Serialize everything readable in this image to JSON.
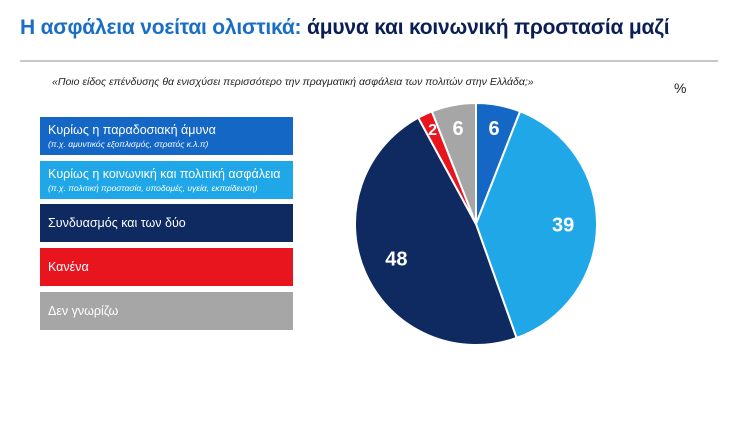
{
  "header": {
    "title_part1": "Η ασφάλεια νοείται ολιστικά:",
    "title_part2": "άμυνα και κοινωνική προστασία μαζί",
    "question": "«Ποιο είδος επένδυσης θα ενισχύσει περισσότερο την πραγματική ασφάλεια των πολιτών στην Ελλάδα;»",
    "unit": "%"
  },
  "colors": {
    "title_accent": "#1a6fc4",
    "title_dark": "#0b1f55"
  },
  "legend": [
    {
      "label": "Κυρίως η παραδοσιακή άμυνα",
      "sublabel": "(π.χ. αμυντικός εξοπλισμός, στρατός κ.λ.π)",
      "color": "#1467c5"
    },
    {
      "label": "Κυρίως η κοινωνική και πολιτική ασφάλεια",
      "sublabel": "(π.χ. πολιτική προστασία, υποδομές, υγεία, εκπαίδευση)",
      "color": "#1fa7e8"
    },
    {
      "label": "Συνδυασμός και των δύο",
      "sublabel": "",
      "color": "#0e2a60"
    },
    {
      "label": "Κανένα",
      "sublabel": "",
      "color": "#e8151f"
    },
    {
      "label": "Δεν γνωρίζω",
      "sublabel": "",
      "color": "#a6a6a6"
    }
  ],
  "chart_data": {
    "type": "pie",
    "title": "Η ασφάλεια νοείται ολιστικά: άμυνα και κοινωνική προστασία μαζί",
    "unit": "%",
    "slices": [
      {
        "label": "Κυρίως η παραδοσιακή άμυνα",
        "value": 6,
        "display": "6",
        "color": "#1467c5"
      },
      {
        "label": "Κυρίως η κοινωνική και πολιτική ασφάλεια",
        "value": 39,
        "display": "39",
        "color": "#1fa7e8"
      },
      {
        "label": "Συνδυασμός και των δύο",
        "value": 48,
        "display": "48",
        "color": "#0e2a60"
      },
      {
        "label": "Κανένα",
        "value": 2,
        "display": "2",
        "color": "#e8151f"
      },
      {
        "label": "Δεν γνωρίζω",
        "value": 6,
        "display": "6",
        "color": "#a6a6a6"
      }
    ],
    "start": "12 o'clock",
    "direction": "clockwise"
  }
}
